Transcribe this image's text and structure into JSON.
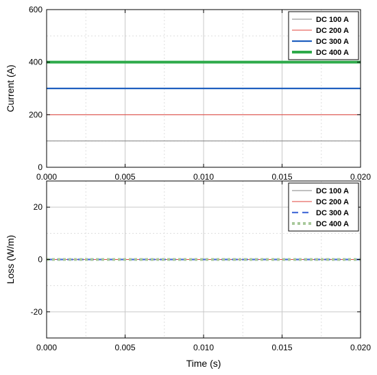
{
  "chart_data": [
    {
      "type": "line",
      "title": "",
      "xlabel": "",
      "ylabel": "Current (A)",
      "xlim": [
        0.0,
        0.02
      ],
      "ylim": [
        0,
        600
      ],
      "xticks": [
        "0.000",
        "0.005",
        "0.010",
        "0.015",
        "0.020"
      ],
      "xtick_values": [
        0.0,
        0.005,
        0.01,
        0.015,
        0.02
      ],
      "yticks": [
        "0",
        "200",
        "400",
        "600"
      ],
      "ytick_values": [
        0,
        200,
        400,
        600
      ],
      "grid": true,
      "legend_position": "top-right",
      "series": [
        {
          "name": "DC 100 A",
          "color": "#808080",
          "style": "solid",
          "width": "thin",
          "x": [
            0.0,
            0.02
          ],
          "y": [
            100,
            100
          ]
        },
        {
          "name": "DC 200 A",
          "color": "#e0403a",
          "style": "solid",
          "width": "thin",
          "x": [
            0.0,
            0.02
          ],
          "y": [
            200,
            200
          ]
        },
        {
          "name": "DC 300 A",
          "color": "#1f5fbf",
          "style": "solid",
          "width": "medium",
          "x": [
            0.0,
            0.02
          ],
          "y": [
            300,
            300
          ]
        },
        {
          "name": "DC 400 A",
          "color": "#2eaa4a",
          "style": "solid",
          "width": "thick",
          "x": [
            0.0,
            0.02
          ],
          "y": [
            400,
            400
          ]
        }
      ]
    },
    {
      "type": "line",
      "title": "",
      "xlabel": "Time (s)",
      "ylabel": "Loss (W/m)",
      "xlim": [
        0.0,
        0.02
      ],
      "ylim": [
        -30,
        30
      ],
      "xticks": [
        "0.000",
        "0.005",
        "0.010",
        "0.015",
        "0.020"
      ],
      "xtick_values": [
        0.0,
        0.005,
        0.01,
        0.015,
        0.02
      ],
      "yticks": [
        "-20",
        "0",
        "20"
      ],
      "ytick_values": [
        -20,
        0,
        20
      ],
      "grid": true,
      "legend_position": "top-right",
      "series": [
        {
          "name": "DC 100 A",
          "color": "#808080",
          "style": "solid",
          "width": "thin",
          "x": [
            0.0,
            0.02
          ],
          "y": [
            0,
            0
          ]
        },
        {
          "name": "DC 200 A",
          "color": "#e0403a",
          "style": "solid",
          "width": "thin",
          "x": [
            0.0,
            0.02
          ],
          "y": [
            0,
            0
          ]
        },
        {
          "name": "DC 300 A",
          "color": "#4a6fd8",
          "style": "dashed",
          "width": "medium",
          "x": [
            0.0,
            0.02
          ],
          "y": [
            0,
            0
          ]
        },
        {
          "name": "DC 400 A",
          "color": "#a8c89a",
          "style": "dotted",
          "width": "thick",
          "x": [
            0.0,
            0.02
          ],
          "y": [
            0,
            0
          ]
        }
      ]
    }
  ]
}
